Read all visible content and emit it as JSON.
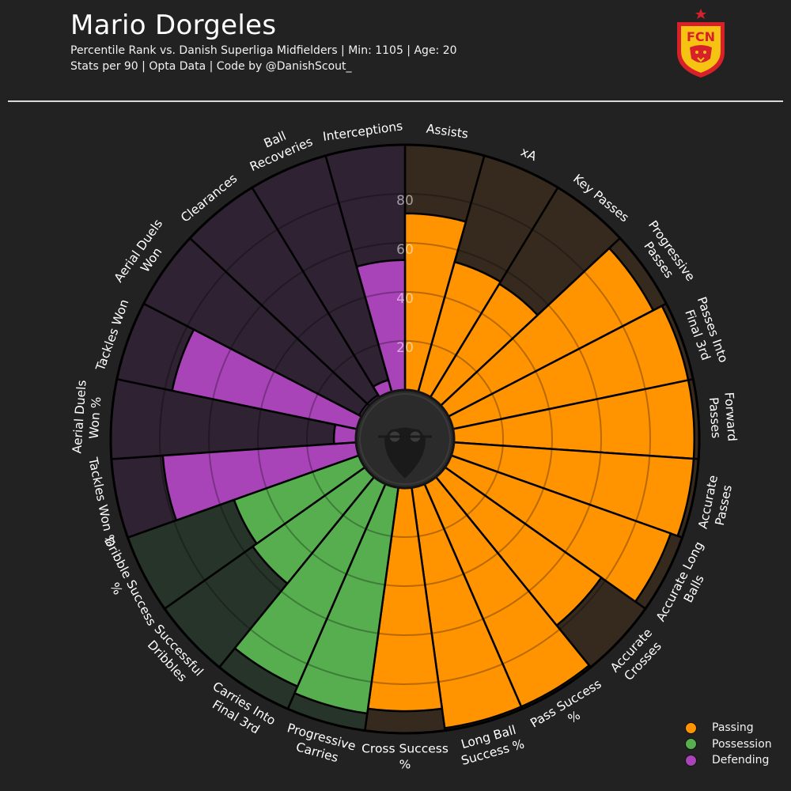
{
  "header": {
    "player_name": "Mario Dorgeles",
    "subtitle_line1": "Percentile Rank vs. Danish Superliga Midfielders | Min: 1105 | Age: 20",
    "subtitle_line2": "Stats per 90 | Opta Data | Code by @DanishScout_",
    "club_badge_text": "FCN"
  },
  "colors": {
    "background": "#222222",
    "passing": "#FF9300",
    "passing_bg": "#362A1E",
    "possession": "#57AE4F",
    "possession_bg": "#27342A",
    "defending": "#A844B8",
    "defending_bg": "#2F2233",
    "badge_red": "#D8202A",
    "badge_yellow": "#F6C312"
  },
  "legend": {
    "items": [
      {
        "label": "Passing",
        "color": "#FF9300"
      },
      {
        "label": "Possession",
        "color": "#57AE4F"
      },
      {
        "label": "Defending",
        "color": "#A844B8"
      }
    ]
  },
  "chart_data": {
    "type": "radial-bar",
    "title": "Mario Dorgeles",
    "rlim": [
      0,
      100
    ],
    "radial_ticks": [
      20,
      40,
      60,
      80
    ],
    "radial_tick_labels": [
      "20",
      "40",
      "60",
      "80"
    ],
    "grid": true,
    "legend_position": "bottom-right",
    "center_icon": "scout-logo-icon",
    "categories": [
      {
        "label": "Assists",
        "value": 72,
        "group": "Passing"
      },
      {
        "label": "xA",
        "value": 55,
        "group": "Passing"
      },
      {
        "label": "Key Passes",
        "value": 54,
        "group": "Passing"
      },
      {
        "label": "Progressive Passes",
        "value": 94,
        "group": "Passing"
      },
      {
        "label": "Passes Into Final 3rd",
        "value": 98,
        "group": "Passing"
      },
      {
        "label": "Forward Passes",
        "value": 98,
        "group": "Passing"
      },
      {
        "label": "Accurate Passes",
        "value": 98,
        "group": "Passing"
      },
      {
        "label": "Accurate Long Balls",
        "value": 95,
        "group": "Passing"
      },
      {
        "label": "Accurate Crosses",
        "value": 78,
        "group": "Passing"
      },
      {
        "label": "Pass Success %",
        "value": 99,
        "group": "Passing"
      },
      {
        "label": "Long Ball Success %",
        "value": 99,
        "group": "Passing"
      },
      {
        "label": "Cross Success %",
        "value": 91,
        "group": "Passing"
      },
      {
        "label": "Progressive Carries",
        "value": 93,
        "group": "Possession"
      },
      {
        "label": "Carries Into Final 3rd",
        "value": 90,
        "group": "Possession"
      },
      {
        "label": "Successful Dribbles",
        "value": 56,
        "group": "Possession"
      },
      {
        "label": "Dribble Success %",
        "value": 54,
        "group": "Possession"
      },
      {
        "label": "Tackles Won %",
        "value": 79,
        "group": "Defending"
      },
      {
        "label": "Aerial Duels Won %",
        "value": 9,
        "group": "Defending"
      },
      {
        "label": "Tackles Won",
        "value": 77,
        "group": "Defending"
      },
      {
        "label": "Aerial Duels Won",
        "value": 1,
        "group": "Defending"
      },
      {
        "label": "Clearances",
        "value": 1,
        "group": "Defending"
      },
      {
        "label": "Ball Recoveries",
        "value": 5,
        "group": "Defending"
      },
      {
        "label": "Interceptions",
        "value": 53,
        "group": "Defending"
      },
      {
        "label": "Interceptions_placeholder_removed",
        "value": null,
        "group": null
      }
    ]
  }
}
